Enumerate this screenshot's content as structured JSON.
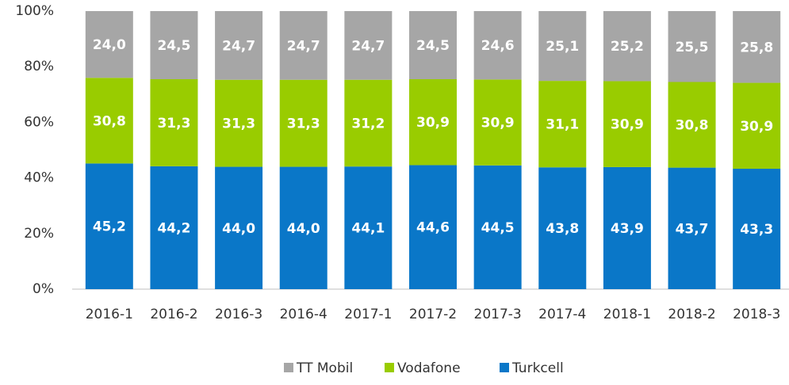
{
  "chart_data": {
    "type": "stacked_bar",
    "categories": [
      "2016-1",
      "2016-2",
      "2016-3",
      "2016-4",
      "2017-1",
      "2017-2",
      "2017-3",
      "2017-4",
      "2018-1",
      "2018-2",
      "2018-3"
    ],
    "series": [
      {
        "name": "Turkcell",
        "color": "#0a77c8",
        "values": [
          45.2,
          44.2,
          44.0,
          44.0,
          44.1,
          44.6,
          44.5,
          43.8,
          43.9,
          43.7,
          43.3
        ],
        "value_labels": [
          "45,2",
          "44,2",
          "44,0",
          "44,0",
          "44,1",
          "44,6",
          "44,5",
          "43,8",
          "43,9",
          "43,7",
          "43,3"
        ]
      },
      {
        "name": "Vodafone",
        "color": "#99cc00",
        "values": [
          30.8,
          31.3,
          31.3,
          31.3,
          31.2,
          30.9,
          30.9,
          31.1,
          30.9,
          30.8,
          30.9
        ],
        "value_labels": [
          "30,8",
          "31,3",
          "31,3",
          "31,3",
          "31,2",
          "30,9",
          "30,9",
          "31,1",
          "30,9",
          "30,8",
          "30,9"
        ]
      },
      {
        "name": "TT Mobil",
        "color": "#a6a6a6",
        "values": [
          24.0,
          24.5,
          24.7,
          24.7,
          24.7,
          24.5,
          24.6,
          25.1,
          25.2,
          25.5,
          25.8
        ],
        "value_labels": [
          "24,0",
          "24,5",
          "24,7",
          "24,7",
          "24,7",
          "24,5",
          "24,6",
          "25,1",
          "25,2",
          "25,5",
          "25,8"
        ]
      }
    ],
    "ylim": [
      0,
      100
    ],
    "yticks": [
      {
        "value": 0,
        "label": "0%"
      },
      {
        "value": 20,
        "label": "20%"
      },
      {
        "value": 40,
        "label": "40%"
      },
      {
        "value": 60,
        "label": "60%"
      },
      {
        "value": 80,
        "label": "80%"
      },
      {
        "value": 100,
        "label": "100%"
      }
    ],
    "legend": "bottom"
  }
}
